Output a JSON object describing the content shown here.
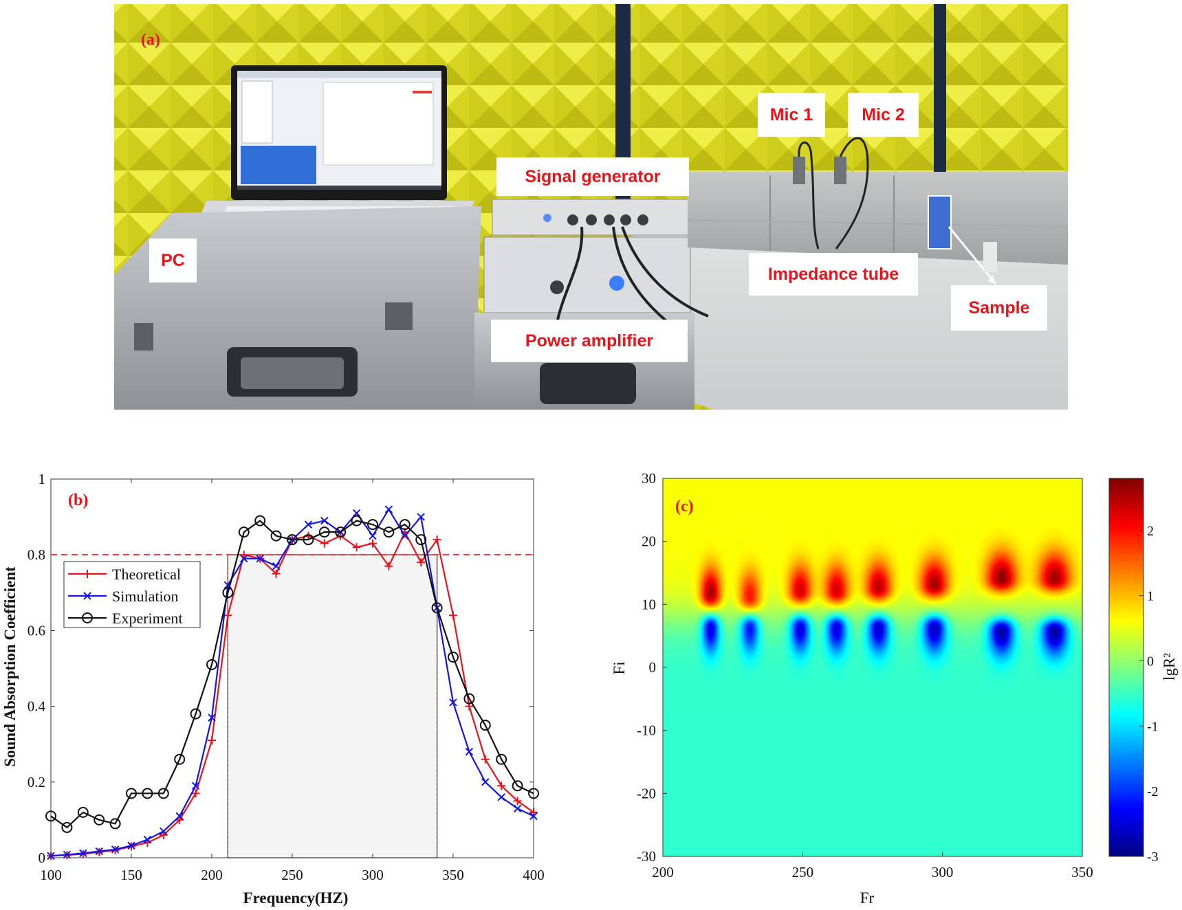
{
  "photo": {
    "panel_label": "(a)",
    "labels": {
      "pc": "PC",
      "signal_generator": "Signal generator",
      "power_amplifier": "Power amplifier",
      "mic1": "Mic 1",
      "mic2": "Mic 2",
      "impedance_tube": "Impedance tube",
      "sample": "Sample"
    },
    "colors": {
      "foam": "#e3e22a",
      "floor": "#d9dcdc",
      "case": "#b9bcc0",
      "sample": "#3d6fd0",
      "label_text": "#e8141b"
    }
  },
  "chart_data": [
    {
      "type": "line",
      "panel_label": "(b)",
      "xlabel": "Frequency(HZ)",
      "ylabel": "Sound Absorption Coefficient",
      "xlim": [
        100,
        400
      ],
      "ylim": [
        0,
        1
      ],
      "xticks": [
        100,
        150,
        200,
        250,
        300,
        350,
        400
      ],
      "yticks": [
        0,
        0.2,
        0.4,
        0.6,
        0.8,
        1
      ],
      "ytick_labels": [
        "0",
        "0.2",
        "0.4",
        "0.6",
        "0.8",
        "1"
      ],
      "reference_line": {
        "y": 0.8,
        "color": "#e8141b",
        "style": "dashed"
      },
      "band": {
        "x_start": 210,
        "x_end": 340,
        "y_top": 0.8,
        "fill": "#f4f4f4"
      },
      "legend": {
        "position": "top-left"
      },
      "series": [
        {
          "name": "Theoretical",
          "color": "#e8141b",
          "marker": "plus",
          "x": [
            100,
            110,
            120,
            130,
            140,
            150,
            160,
            170,
            180,
            190,
            200,
            210,
            220,
            230,
            240,
            250,
            260,
            270,
            280,
            290,
            300,
            310,
            320,
            330,
            340,
            350,
            360,
            370,
            380,
            390,
            400
          ],
          "y": [
            0.005,
            0.007,
            0.01,
            0.015,
            0.02,
            0.03,
            0.04,
            0.06,
            0.1,
            0.17,
            0.31,
            0.64,
            0.8,
            0.79,
            0.75,
            0.84,
            0.85,
            0.83,
            0.85,
            0.82,
            0.83,
            0.77,
            0.86,
            0.78,
            0.84,
            0.64,
            0.4,
            0.26,
            0.19,
            0.15,
            0.12
          ]
        },
        {
          "name": "Simulation",
          "color": "#1414e6",
          "marker": "x",
          "x": [
            100,
            110,
            120,
            130,
            140,
            150,
            160,
            170,
            180,
            190,
            200,
            210,
            220,
            230,
            240,
            250,
            260,
            270,
            280,
            290,
            300,
            310,
            320,
            330,
            340,
            350,
            360,
            370,
            380,
            390,
            400
          ],
          "y": [
            0.005,
            0.008,
            0.012,
            0.017,
            0.022,
            0.032,
            0.048,
            0.07,
            0.11,
            0.19,
            0.37,
            0.72,
            0.79,
            0.79,
            0.77,
            0.84,
            0.88,
            0.89,
            0.86,
            0.91,
            0.85,
            0.92,
            0.85,
            0.9,
            0.66,
            0.41,
            0.28,
            0.2,
            0.16,
            0.13,
            0.11
          ]
        },
        {
          "name": "Experiment",
          "color": "#111111",
          "marker": "circle",
          "x": [
            100,
            110,
            120,
            130,
            140,
            150,
            160,
            170,
            180,
            190,
            200,
            210,
            220,
            230,
            240,
            250,
            260,
            270,
            280,
            290,
            300,
            310,
            320,
            330,
            340,
            350,
            360,
            370,
            380,
            390,
            400
          ],
          "y": [
            0.11,
            0.08,
            0.12,
            0.1,
            0.09,
            0.17,
            0.17,
            0.17,
            0.26,
            0.38,
            0.51,
            0.7,
            0.86,
            0.89,
            0.85,
            0.84,
            0.84,
            0.86,
            0.86,
            0.89,
            0.88,
            0.86,
            0.88,
            0.84,
            0.66,
            0.53,
            0.42,
            0.35,
            0.26,
            0.19,
            0.17
          ]
        }
      ]
    },
    {
      "type": "heatmap",
      "panel_label": "(c)",
      "xlabel": "Fr",
      "ylabel": "Fi",
      "xlim": [
        200,
        350
      ],
      "ylim": [
        -30,
        30
      ],
      "xticks": [
        200,
        250,
        300,
        350
      ],
      "yticks": [
        30,
        20,
        10,
        0,
        -10,
        -20,
        -30
      ],
      "colorbar": {
        "label": "lgR²",
        "ticks": [
          2,
          1,
          0,
          -1,
          -2,
          -3
        ],
        "range": [
          -3,
          2.8
        ]
      },
      "background_top": 0.6,
      "background_bottom": -0.55,
      "features": [
        {
          "fr": 217,
          "pole_fi": 11.5,
          "pole_value": 2.8,
          "zero_fi": 6.5,
          "zero_value": -2.3
        },
        {
          "fr": 231,
          "pole_fi": 11,
          "pole_value": 2.2,
          "zero_fi": 6.5,
          "zero_value": -2.0
        },
        {
          "fr": 249,
          "pole_fi": 12,
          "pole_value": 2.5,
          "zero_fi": 6.5,
          "zero_value": -2.3
        },
        {
          "fr": 262,
          "pole_fi": 12,
          "pole_value": 2.5,
          "zero_fi": 6.5,
          "zero_value": -2.3
        },
        {
          "fr": 277,
          "pole_fi": 12.5,
          "pole_value": 2.6,
          "zero_fi": 6.5,
          "zero_value": -2.4
        },
        {
          "fr": 297,
          "pole_fi": 13,
          "pole_value": 2.7,
          "zero_fi": 6.5,
          "zero_value": -2.5
        },
        {
          "fr": 321,
          "pole_fi": 14,
          "pole_value": 2.8,
          "zero_fi": 6,
          "zero_value": -2.6
        },
        {
          "fr": 340,
          "pole_fi": 14,
          "pole_value": 2.7,
          "zero_fi": 6,
          "zero_value": -2.6
        }
      ]
    }
  ]
}
